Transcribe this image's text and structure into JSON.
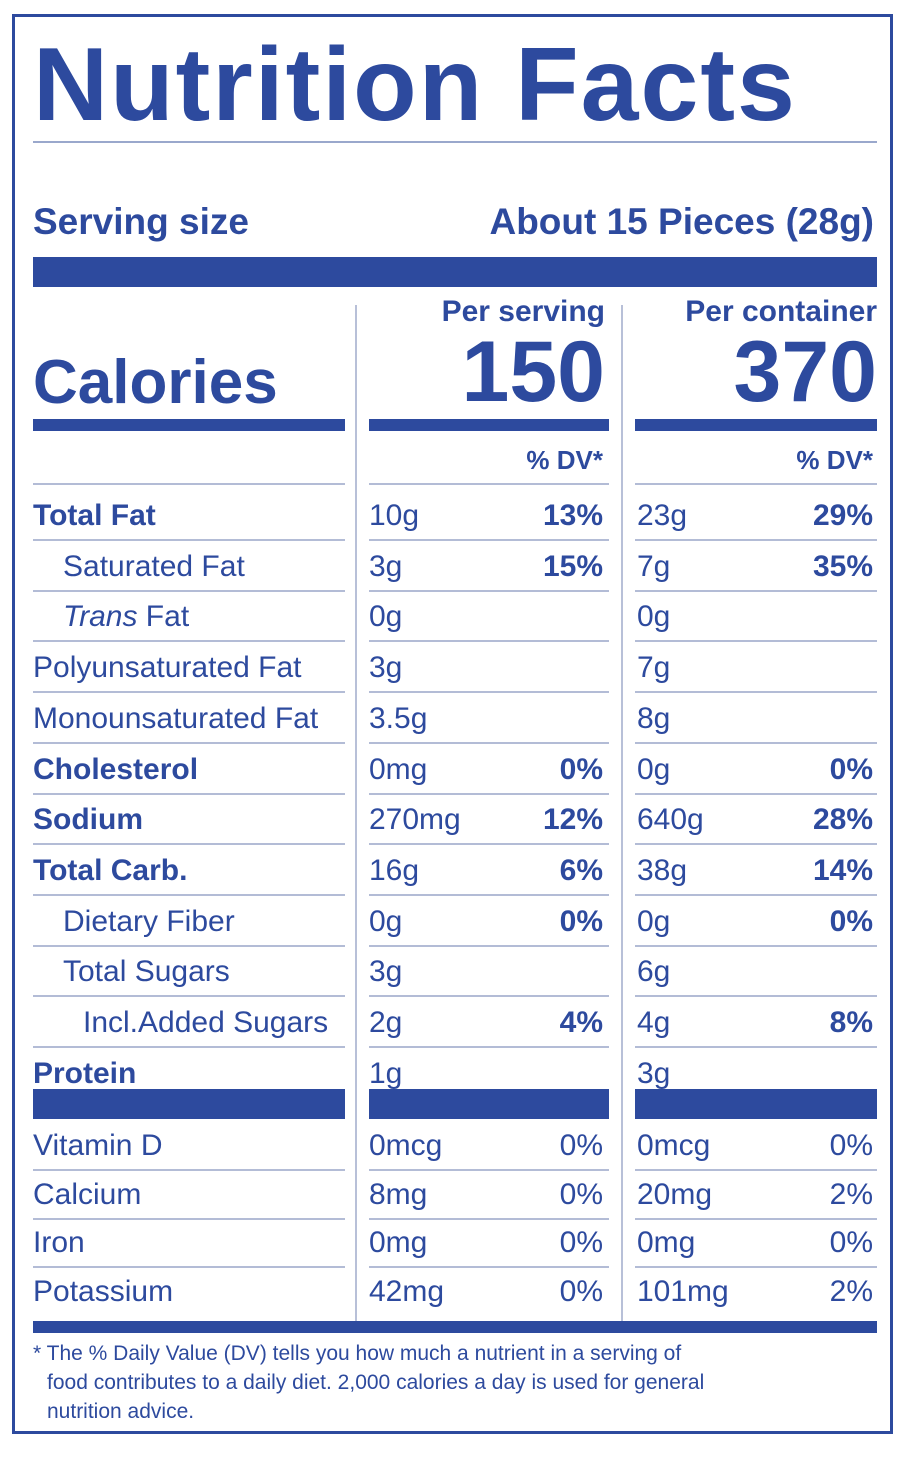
{
  "title": "Nutrition Facts",
  "serving": {
    "label": "Serving size",
    "value": "About 15 Pieces (28g)"
  },
  "calories": {
    "label": "Calories",
    "per_serving_header": "Per serving",
    "per_container_header": "Per container",
    "per_serving": "150",
    "per_container": "370",
    "dv_header": "% DV*"
  },
  "nutrients": [
    {
      "name": "Total Fat",
      "style": "bold",
      "s_amt": "10g",
      "s_dv": "13%",
      "c_amt": "23g",
      "c_dv": "29%"
    },
    {
      "name": "Saturated Fat",
      "style": "indent1",
      "s_amt": "3g",
      "s_dv": "15%",
      "c_amt": "7g",
      "c_dv": "35%"
    },
    {
      "name_italic": "Trans",
      "name": " Fat",
      "style": "indent1",
      "s_amt": "0g",
      "s_dv": "",
      "c_amt": "0g",
      "c_dv": ""
    },
    {
      "name": "Polyunsaturated Fat",
      "style": "normal",
      "s_amt": "3g",
      "s_dv": "",
      "c_amt": "7g",
      "c_dv": ""
    },
    {
      "name": "Monounsaturated Fat",
      "style": "normal",
      "s_amt": "3.5g",
      "s_dv": "",
      "c_amt": "8g",
      "c_dv": ""
    },
    {
      "name": "Cholesterol",
      "style": "bold",
      "s_amt": "0mg",
      "s_dv": "0%",
      "c_amt": "0g",
      "c_dv": "0%"
    },
    {
      "name": "Sodium",
      "style": "bold",
      "s_amt": "270mg",
      "s_dv": "12%",
      "c_amt": "640g",
      "c_dv": "28%"
    },
    {
      "name": "Total Carb.",
      "style": "bold",
      "s_amt": "16g",
      "s_dv": "6%",
      "c_amt": "38g",
      "c_dv": "14%"
    },
    {
      "name": "Dietary Fiber",
      "style": "indent1",
      "s_amt": "0g",
      "s_dv": "0%",
      "c_amt": "0g",
      "c_dv": "0%"
    },
    {
      "name": "Total Sugars",
      "style": "indent1",
      "s_amt": "3g",
      "s_dv": "",
      "c_amt": "6g",
      "c_dv": ""
    },
    {
      "name": "Incl.Added Sugars",
      "style": "indent2",
      "s_amt": "2g",
      "s_dv": "4%",
      "c_amt": "4g",
      "c_dv": "8%"
    },
    {
      "name": "Protein",
      "style": "bold",
      "s_amt": "1g",
      "s_dv": "",
      "c_amt": "3g",
      "c_dv": ""
    }
  ],
  "micronutrients": [
    {
      "name": "Vitamin D",
      "s_amt": "0mcg",
      "s_dv": "0%",
      "c_amt": "0mcg",
      "c_dv": "0%"
    },
    {
      "name": "Calcium",
      "s_amt": "8mg",
      "s_dv": "0%",
      "c_amt": "20mg",
      "c_dv": "2%"
    },
    {
      "name": "Iron",
      "s_amt": "0mg",
      "s_dv": "0%",
      "c_amt": "0mg",
      "c_dv": "0%"
    },
    {
      "name": "Potassium",
      "s_amt": "42mg",
      "s_dv": "0%",
      "c_amt": "101mg",
      "c_dv": "2%"
    }
  ],
  "footnote": {
    "line1": "* The % Daily Value (DV) tells you how much a nutrient in a serving of",
    "line2": "food contributes to a daily diet. 2,000 calories a day is used for general",
    "line3": "nutrition advice."
  },
  "colors": {
    "ink": "#2d4a9e",
    "rule": "#b3bcd6"
  }
}
